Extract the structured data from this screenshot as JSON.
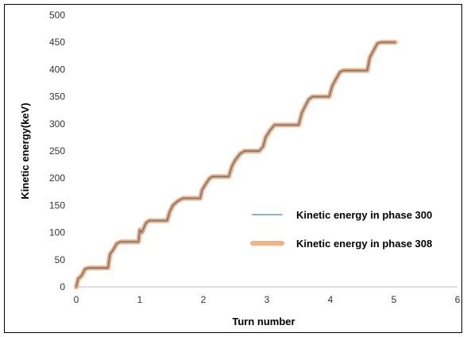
{
  "chart_data": {
    "type": "line",
    "title": "",
    "xlabel": "Turn number",
    "ylabel": "Kinetic energy(keV)",
    "xlim": [
      0,
      6
    ],
    "ylim": [
      0,
      500
    ],
    "xticks": [
      "0",
      "1",
      "2",
      "3",
      "4",
      "5",
      "6"
    ],
    "yticks": [
      "0",
      "50",
      "100",
      "150",
      "200",
      "250",
      "300",
      "350",
      "400",
      "450",
      "500"
    ],
    "grid": false,
    "legend_position": "right",
    "series": [
      {
        "name": "Kinetic energy in phase 300",
        "color": "#5b9bd5",
        "points": [
          [
            0,
            0
          ],
          [
            0.03,
            15
          ],
          [
            0.08,
            20
          ],
          [
            0.14,
            33
          ],
          [
            0.2,
            35
          ],
          [
            0.5,
            35
          ],
          [
            0.53,
            60
          ],
          [
            0.58,
            68
          ],
          [
            0.64,
            80
          ],
          [
            0.7,
            83
          ],
          [
            0.98,
            83
          ],
          [
            1.0,
            105
          ],
          [
            1.03,
            100
          ],
          [
            1.1,
            118
          ],
          [
            1.15,
            122
          ],
          [
            1.43,
            122
          ],
          [
            1.47,
            138
          ],
          [
            1.52,
            150
          ],
          [
            1.6,
            158
          ],
          [
            1.68,
            163
          ],
          [
            1.95,
            163
          ],
          [
            1.98,
            178
          ],
          [
            2.03,
            188
          ],
          [
            2.1,
            200
          ],
          [
            2.15,
            203
          ],
          [
            2.4,
            203
          ],
          [
            2.45,
            222
          ],
          [
            2.5,
            233
          ],
          [
            2.58,
            245
          ],
          [
            2.65,
            250
          ],
          [
            2.88,
            250
          ],
          [
            2.94,
            258
          ],
          [
            2.98,
            275
          ],
          [
            3.05,
            288
          ],
          [
            3.12,
            298
          ],
          [
            3.5,
            298
          ],
          [
            3.55,
            320
          ],
          [
            3.6,
            332
          ],
          [
            3.66,
            345
          ],
          [
            3.72,
            350
          ],
          [
            3.98,
            350
          ],
          [
            4.03,
            370
          ],
          [
            4.1,
            385
          ],
          [
            4.15,
            395
          ],
          [
            4.2,
            398
          ],
          [
            4.58,
            398
          ],
          [
            4.62,
            422
          ],
          [
            4.68,
            435
          ],
          [
            4.74,
            448
          ],
          [
            4.8,
            450
          ],
          [
            5.02,
            450
          ]
        ]
      },
      {
        "name": "Kinetic energy in phase 308",
        "color": "#f4b183",
        "points": [
          [
            0,
            0
          ],
          [
            0.03,
            15
          ],
          [
            0.08,
            20
          ],
          [
            0.14,
            33
          ],
          [
            0.2,
            35
          ],
          [
            0.5,
            35
          ],
          [
            0.53,
            60
          ],
          [
            0.58,
            68
          ],
          [
            0.64,
            80
          ],
          [
            0.7,
            83
          ],
          [
            0.98,
            83
          ],
          [
            1.0,
            105
          ],
          [
            1.03,
            100
          ],
          [
            1.1,
            118
          ],
          [
            1.15,
            122
          ],
          [
            1.43,
            122
          ],
          [
            1.47,
            138
          ],
          [
            1.52,
            150
          ],
          [
            1.6,
            158
          ],
          [
            1.68,
            163
          ],
          [
            1.95,
            163
          ],
          [
            1.98,
            178
          ],
          [
            2.03,
            188
          ],
          [
            2.1,
            200
          ],
          [
            2.15,
            203
          ],
          [
            2.4,
            203
          ],
          [
            2.45,
            222
          ],
          [
            2.5,
            233
          ],
          [
            2.58,
            245
          ],
          [
            2.65,
            250
          ],
          [
            2.88,
            250
          ],
          [
            2.94,
            258
          ],
          [
            2.98,
            275
          ],
          [
            3.05,
            288
          ],
          [
            3.12,
            298
          ],
          [
            3.5,
            298
          ],
          [
            3.55,
            320
          ],
          [
            3.6,
            332
          ],
          [
            3.66,
            345
          ],
          [
            3.72,
            350
          ],
          [
            3.98,
            350
          ],
          [
            4.03,
            370
          ],
          [
            4.1,
            385
          ],
          [
            4.15,
            395
          ],
          [
            4.2,
            398
          ],
          [
            4.58,
            398
          ],
          [
            4.62,
            422
          ],
          [
            4.68,
            435
          ],
          [
            4.74,
            448
          ],
          [
            4.8,
            450
          ],
          [
            5.02,
            450
          ]
        ]
      }
    ]
  }
}
